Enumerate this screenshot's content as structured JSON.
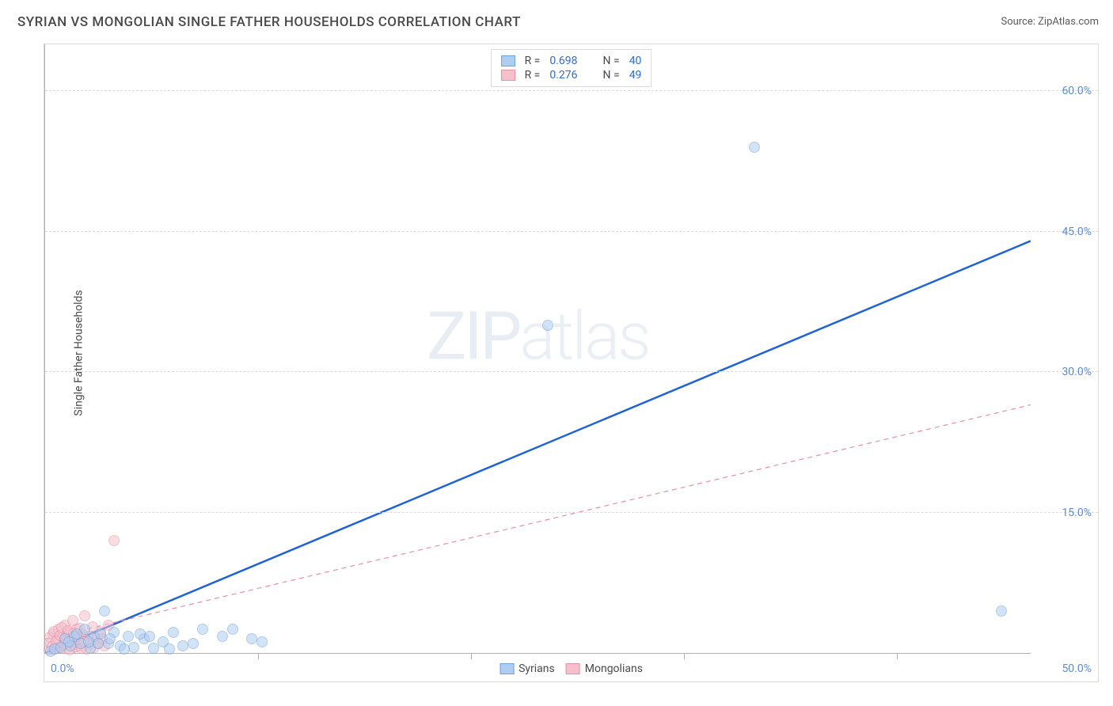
{
  "title": "SYRIAN VS MONGOLIAN SINGLE FATHER HOUSEHOLDS CORRELATION CHART",
  "source_label": "Source: ZipAtlas.com",
  "y_axis_label": "Single Father Households",
  "watermark": {
    "bold": "ZIP",
    "light": "atlas"
  },
  "chart": {
    "type": "scatter",
    "background_color": "#ffffff",
    "plot_border_color": "#b0b0b0",
    "grid_color": "#dcdcdc",
    "grid_dash": "4,4",
    "xlim": [
      0,
      50
    ],
    "ylim": [
      0,
      65
    ],
    "x_ticks_minor": [
      10.8,
      21.6,
      32.4,
      43.2
    ],
    "x_tick_labels": [
      {
        "value": 0.0,
        "label": "0.0%"
      },
      {
        "value": 50.0,
        "label": "50.0%"
      }
    ],
    "y_tick_labels": [
      {
        "value": 15.0,
        "label": "15.0%"
      },
      {
        "value": 30.0,
        "label": "30.0%"
      },
      {
        "value": 45.0,
        "label": "45.0%"
      },
      {
        "value": 60.0,
        "label": "60.0%"
      }
    ],
    "tick_label_color": "#5a8dd6",
    "tick_label_fontsize": 14,
    "series": [
      {
        "name": "Syrians",
        "color_fill": "#aecdf0",
        "color_stroke": "#6fa3dc",
        "fill_opacity": 0.55,
        "marker_size": 14,
        "r_value": "0.698",
        "n_value": "40",
        "trend": {
          "x1": 0.0,
          "y1": 0.0,
          "x2": 50.0,
          "y2": 44.0,
          "color": "#1f63d6",
          "width": 2.5,
          "dash": "none"
        },
        "points": [
          {
            "x": 0.3,
            "y": 0.2
          },
          {
            "x": 0.5,
            "y": 0.4
          },
          {
            "x": 0.8,
            "y": 0.6
          },
          {
            "x": 1.0,
            "y": 1.5
          },
          {
            "x": 1.3,
            "y": 0.8
          },
          {
            "x": 1.5,
            "y": 1.8
          },
          {
            "x": 1.8,
            "y": 1.0
          },
          {
            "x": 2.0,
            "y": 2.5
          },
          {
            "x": 2.3,
            "y": 0.5
          },
          {
            "x": 2.5,
            "y": 1.8
          },
          {
            "x": 2.7,
            "y": 1.0
          },
          {
            "x": 3.0,
            "y": 4.5
          },
          {
            "x": 3.2,
            "y": 1.0
          },
          {
            "x": 3.5,
            "y": 2.2
          },
          {
            "x": 3.8,
            "y": 0.8
          },
          {
            "x": 4.2,
            "y": 1.8
          },
          {
            "x": 4.5,
            "y": 0.6
          },
          {
            "x": 5.0,
            "y": 1.5
          },
          {
            "x": 5.5,
            "y": 0.5
          },
          {
            "x": 6.0,
            "y": 1.2
          },
          {
            "x": 6.5,
            "y": 2.2
          },
          {
            "x": 7.0,
            "y": 0.8
          },
          {
            "x": 8.0,
            "y": 2.5
          },
          {
            "x": 9.0,
            "y": 1.8
          },
          {
            "x": 9.5,
            "y": 2.5
          },
          {
            "x": 10.5,
            "y": 1.5
          },
          {
            "x": 11.0,
            "y": 1.2
          },
          {
            "x": 25.5,
            "y": 35.0
          },
          {
            "x": 36.0,
            "y": 54.0
          },
          {
            "x": 48.5,
            "y": 4.5
          },
          {
            "x": 1.2,
            "y": 1.2
          },
          {
            "x": 1.6,
            "y": 2.0
          },
          {
            "x": 2.2,
            "y": 1.2
          },
          {
            "x": 2.8,
            "y": 2.0
          },
          {
            "x": 3.3,
            "y": 1.5
          },
          {
            "x": 4.0,
            "y": 0.4
          },
          {
            "x": 4.8,
            "y": 2.0
          },
          {
            "x": 5.3,
            "y": 1.8
          },
          {
            "x": 6.3,
            "y": 0.4
          },
          {
            "x": 7.5,
            "y": 1.0
          }
        ]
      },
      {
        "name": "Mongolians",
        "color_fill": "#f4c0cc",
        "color_stroke": "#e88fa6",
        "fill_opacity": 0.55,
        "marker_size": 14,
        "r_value": "0.276",
        "n_value": "49",
        "trend": {
          "x1": 0.0,
          "y1": 1.5,
          "x2": 50.0,
          "y2": 26.5,
          "color": "#e88fa6",
          "width": 1.2,
          "dash": "6,5"
        },
        "points": [
          {
            "x": 0.2,
            "y": 0.3
          },
          {
            "x": 0.3,
            "y": 1.0
          },
          {
            "x": 0.4,
            "y": 2.0
          },
          {
            "x": 0.5,
            "y": 0.4
          },
          {
            "x": 0.6,
            "y": 1.5
          },
          {
            "x": 0.7,
            "y": 2.5
          },
          {
            "x": 0.8,
            "y": 0.8
          },
          {
            "x": 0.9,
            "y": 1.8
          },
          {
            "x": 1.0,
            "y": 3.0
          },
          {
            "x": 1.1,
            "y": 0.5
          },
          {
            "x": 1.2,
            "y": 2.2
          },
          {
            "x": 1.3,
            "y": 1.2
          },
          {
            "x": 1.4,
            "y": 3.5
          },
          {
            "x": 1.5,
            "y": 0.6
          },
          {
            "x": 1.6,
            "y": 2.5
          },
          {
            "x": 1.7,
            "y": 1.5
          },
          {
            "x": 1.8,
            "y": 0.8
          },
          {
            "x": 1.9,
            "y": 2.0
          },
          {
            "x": 2.0,
            "y": 4.0
          },
          {
            "x": 2.1,
            "y": 0.4
          },
          {
            "x": 2.2,
            "y": 1.8
          },
          {
            "x": 2.3,
            "y": 1.0
          },
          {
            "x": 2.4,
            "y": 2.8
          },
          {
            "x": 2.5,
            "y": 0.6
          },
          {
            "x": 2.6,
            "y": 1.5
          },
          {
            "x": 2.8,
            "y": 2.2
          },
          {
            "x": 3.0,
            "y": 0.8
          },
          {
            "x": 3.2,
            "y": 3.0
          },
          {
            "x": 3.5,
            "y": 12.0
          },
          {
            "x": 0.25,
            "y": 1.7
          },
          {
            "x": 0.35,
            "y": 0.7
          },
          {
            "x": 0.45,
            "y": 2.3
          },
          {
            "x": 0.55,
            "y": 1.3
          },
          {
            "x": 0.65,
            "y": 0.5
          },
          {
            "x": 0.75,
            "y": 1.9
          },
          {
            "x": 0.85,
            "y": 2.7
          },
          {
            "x": 0.95,
            "y": 0.9
          },
          {
            "x": 1.05,
            "y": 1.6
          },
          {
            "x": 1.15,
            "y": 2.4
          },
          {
            "x": 1.25,
            "y": 0.3
          },
          {
            "x": 1.35,
            "y": 1.1
          },
          {
            "x": 1.45,
            "y": 2.1
          },
          {
            "x": 1.55,
            "y": 0.7
          },
          {
            "x": 1.65,
            "y": 1.4
          },
          {
            "x": 1.75,
            "y": 2.6
          },
          {
            "x": 1.85,
            "y": 0.5
          },
          {
            "x": 1.95,
            "y": 1.2
          },
          {
            "x": 2.7,
            "y": 1.0
          },
          {
            "x": 2.9,
            "y": 1.5
          }
        ]
      }
    ],
    "legend_top": {
      "border_color": "#dcdcdc",
      "r_label": "R =",
      "n_label": "N =",
      "label_color": "#4a4a4a",
      "value_color": "#2d6bd6"
    },
    "legend_bottom": {
      "items": [
        "Syrians",
        "Mongolians"
      ]
    }
  }
}
